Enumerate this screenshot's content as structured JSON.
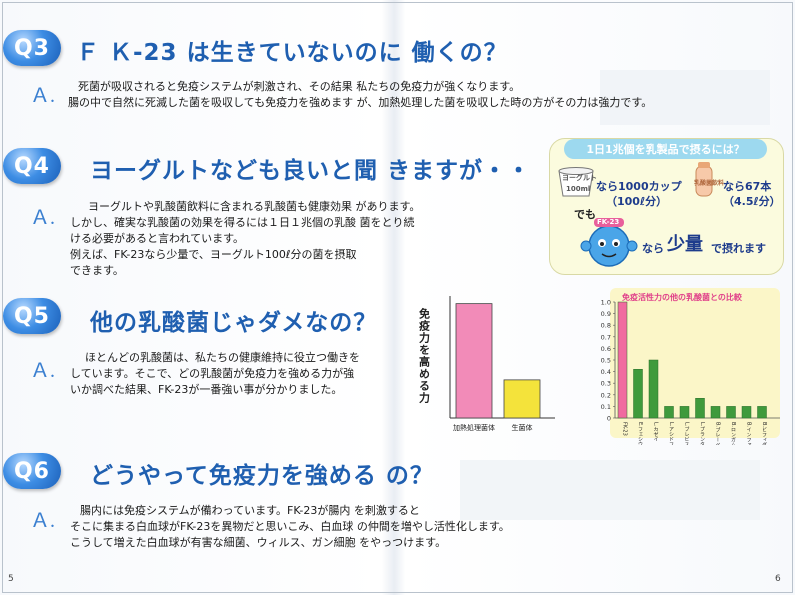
{
  "q3": {
    "badge": "Q3",
    "title": "Ｆ Ｋ-23 は生きていないのに 働くの？",
    "answer_mark": "Ａ.",
    "lines": [
      "死菌が吸収されると免疫システムが刺激され、その結果 私たちの免疫力が強くなります。",
      "腸の中で自然に死滅した菌を吸収しても免疫力を強めます が、加熱処理した菌を吸収した時の方がその力は強力です。"
    ]
  },
  "q4": {
    "badge": "Q4",
    "title": "ヨーグルトなども良いと聞 きますが・・",
    "answer_mark": "Ａ.",
    "lines": [
      "ヨーグルトや乳酸菌飲料に含まれる乳酸菌も健康効果 があります。",
      "しかし、確実な乳酸菌の効果を得るには１日１兆個の乳酸 菌をとり続",
      "ける必要があると言われています。",
      "例えば、FK-23なら少量で、ヨーグルト100ℓ分の菌を摂取",
      "できます。"
    ]
  },
  "q5": {
    "badge": "Q5",
    "title": "他の乳酸菌じゃダメなの？",
    "answer_mark": "Ａ.",
    "lines": [
      "ほとんどの乳酸菌は、私たちの健康維持に役立つ働きを",
      "しています。そこで、どの乳酸菌が免疫力を強める力が強",
      "いか調べた結果、FK-23が一番強い事が分かりました。"
    ]
  },
  "q6": {
    "badge": "Q6",
    "title": "どうやって免疫力を強める の？",
    "answer_mark": "Ａ.",
    "lines": [
      "腸内には免疫システムが備わっています。FK-23が腸内 を刺激すると",
      "そこに集まる白血球がFK-23を異物だと思いこみ、白血球 の仲間を増やし活性化します。",
      "こうして増えた白血球が有害な細菌、ウィルス、ガン細胞 をやっつけます。"
    ]
  },
  "callout": {
    "heading": "1日1兆個を乳製品で摂るには？",
    "cup_label_1": "ヨーグルト",
    "cup_label_2": "100ml",
    "yogurt_line1": "なら1000カップ",
    "yogurt_line2": "（100ℓ分）",
    "bottle_label": "乳酸菌飲料",
    "drink_line1": "なら67本",
    "drink_line2": "（4.5ℓ分）",
    "but_label": "でも",
    "mascot_tag": "FK-23",
    "small_prefix": "なら",
    "small_big": "少量",
    "small_suffix": "で摂れます"
  },
  "chart_data": [
    {
      "type": "bar",
      "ylabel": "免疫力を高める力",
      "categories": [
        "加熱処理菌体",
        "生菌体"
      ],
      "values": [
        3.0,
        1.0
      ],
      "ylim": [
        0,
        3.2
      ],
      "colors": [
        "#f28bb8",
        "#f4e33b"
      ]
    },
    {
      "type": "bar",
      "title": "免疫活性力の他の乳酸菌との比較",
      "categories": [
        "FK-23",
        "E.フェシウム",
        "L.カゼイ",
        "L.アシドフィルス",
        "L.ブレビス",
        "L.プランタラム",
        "B.ブレーベ",
        "B.ロンガム",
        "B.インファンティス",
        "B.ビフィダム"
      ],
      "values": [
        1.0,
        0.42,
        0.5,
        0.1,
        0.1,
        0.17,
        0.1,
        0.1,
        0.1,
        0.1
      ],
      "ylim": [
        0,
        1.0
      ],
      "yticks": [
        "0",
        "0.1",
        "0.2",
        "0.3",
        "0.4",
        "0.5",
        "0.6",
        "0.7",
        "0.8",
        "0.9",
        "1.0"
      ],
      "colors": [
        "#f06aa0",
        "#3f9a3c"
      ]
    }
  ],
  "pages": {
    "left": "5",
    "right": "6"
  },
  "colors": {
    "heading_blue": "#1f5fb0",
    "badge_blue": "#3d8de4",
    "callout_bg": "#fbfbde",
    "chart_bg": "#fbf6c8"
  }
}
